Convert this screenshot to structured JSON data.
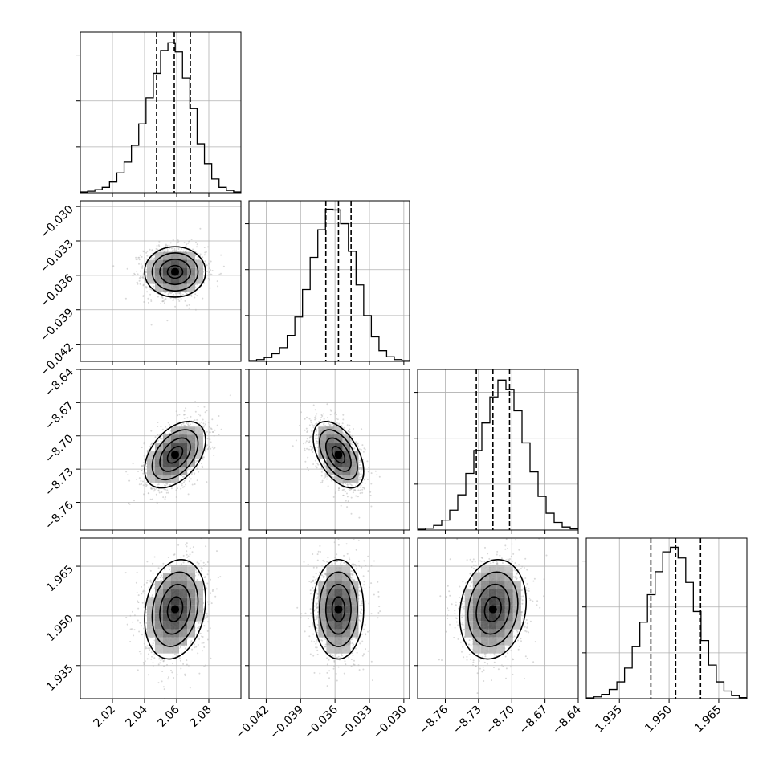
{
  "chart_data": {
    "type": "corner",
    "parameters": [
      {
        "range": [
          2.0,
          2.1
        ],
        "ticks": [
          {
            "v": 2.02,
            "label": "2.02"
          },
          {
            "v": 2.04,
            "label": "2.04"
          },
          {
            "v": 2.06,
            "label": "2.06"
          },
          {
            "v": 2.08,
            "label": "2.08"
          }
        ],
        "quantiles": [
          2.0475,
          2.0585,
          2.0685
        ],
        "mean": 2.059,
        "sd": 0.0095
      },
      {
        "range": [
          -0.0435,
          -0.0295
        ],
        "ticks": [
          {
            "v": -0.042,
            "label": "−0.042"
          },
          {
            "v": -0.039,
            "label": "−0.039"
          },
          {
            "v": -0.036,
            "label": "−0.036"
          },
          {
            "v": -0.033,
            "label": "−0.033"
          },
          {
            "v": -0.03,
            "label": "−0.030"
          }
        ],
        "quantiles": [
          -0.0368,
          -0.0357,
          -0.0346
        ],
        "mean": -0.0357,
        "sd": 0.0011
      },
      {
        "range": [
          -8.785,
          -8.64
        ],
        "ticks": [
          {
            "v": -8.76,
            "label": "−8.76"
          },
          {
            "v": -8.73,
            "label": "−8.73"
          },
          {
            "v": -8.7,
            "label": "−8.70"
          },
          {
            "v": -8.67,
            "label": "−8.67"
          },
          {
            "v": -8.64,
            "label": "−8.64"
          }
        ],
        "quantiles": [
          -8.732,
          -8.717,
          -8.702
        ],
        "mean": -8.717,
        "sd": 0.015
      },
      {
        "range": [
          1.925,
          1.9735
        ],
        "ticks": [
          {
            "v": 1.935,
            "label": "1.935"
          },
          {
            "v": 1.95,
            "label": "1.950"
          },
          {
            "v": 1.965,
            "label": "1.965"
          }
        ],
        "quantiles": [
          1.9445,
          1.952,
          1.9595
        ],
        "mean": 1.952,
        "sd": 0.0075
      }
    ],
    "histograms": [
      [
        0.005,
        0.01,
        0.02,
        0.035,
        0.07,
        0.13,
        0.2,
        0.31,
        0.45,
        0.62,
        0.78,
        0.93,
        0.98,
        0.92,
        0.75,
        0.55,
        0.32,
        0.19,
        0.09,
        0.035,
        0.015,
        0.005
      ],
      [
        0.005,
        0.012,
        0.025,
        0.05,
        0.09,
        0.17,
        0.29,
        0.47,
        0.68,
        0.86,
        0.995,
        0.99,
        0.9,
        0.72,
        0.5,
        0.3,
        0.16,
        0.07,
        0.03,
        0.012,
        0.005
      ],
      [
        0.005,
        0.012,
        0.03,
        0.065,
        0.13,
        0.23,
        0.37,
        0.52,
        0.7,
        0.87,
        0.98,
        0.92,
        0.78,
        0.57,
        0.38,
        0.22,
        0.11,
        0.05,
        0.02,
        0.008
      ],
      [
        0.005,
        0.012,
        0.028,
        0.06,
        0.11,
        0.2,
        0.34,
        0.5,
        0.68,
        0.83,
        0.96,
        0.99,
        0.92,
        0.76,
        0.57,
        0.38,
        0.22,
        0.11,
        0.05,
        0.02,
        0.007
      ]
    ],
    "correlations": {
      "1-0": 0.0,
      "2-0": 0.45,
      "2-1": -0.5,
      "3-0": 0.2,
      "3-1": 0.0,
      "3-2": 0.15
    },
    "grid": true
  }
}
